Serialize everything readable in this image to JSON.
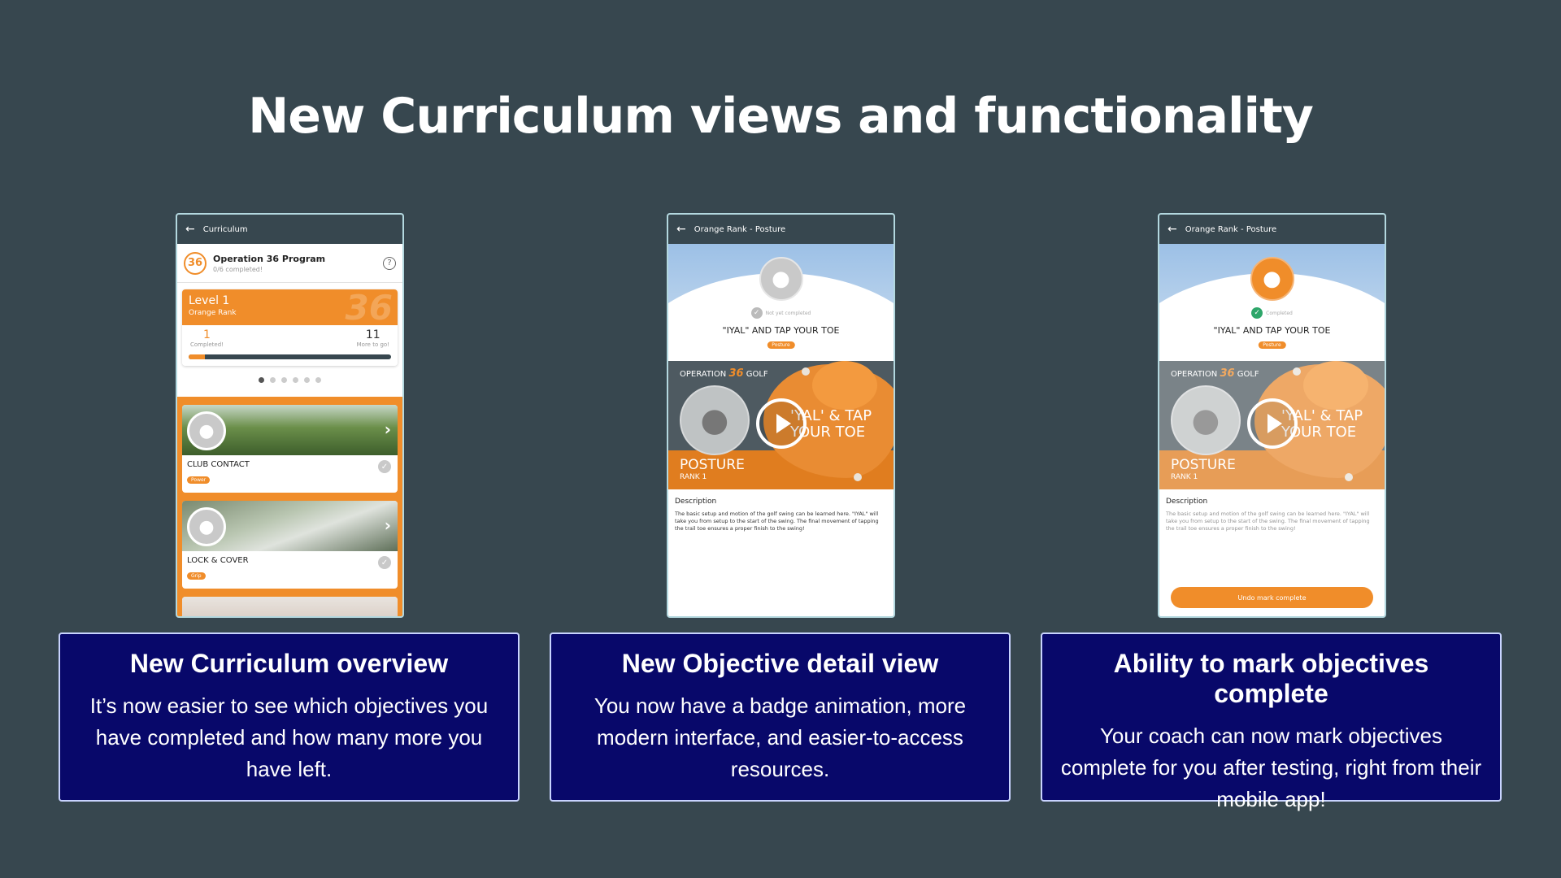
{
  "slide": {
    "title": "New Curriculum views and functionality"
  },
  "phone1": {
    "topbar_title": "Curriculum",
    "program_logo": "36",
    "program_title": "Operation 36 Program",
    "program_sub": "0/6 completed!",
    "help": "?",
    "level_title": "Level 1",
    "level_rank": "Orange Rank",
    "level_bg": "36",
    "completed_num": "1",
    "completed_lbl": "Completed!",
    "togo_num": "11",
    "togo_lbl": "More to go!",
    "progress_fraction": 0.08,
    "objectives": [
      {
        "name": "CLUB CONTACT",
        "tag": "Power"
      },
      {
        "name": "LOCK & COVER",
        "tag": "Grip"
      }
    ]
  },
  "phone2": {
    "topbar_title": "Orange Rank - Posture",
    "status": "Not yet completed",
    "heading": "\"IYAL\" AND TAP YOUR TOE",
    "tag": "Posture",
    "video_brand_a": "OPERATION",
    "video_brand_num": "36",
    "video_brand_b": "GOLF",
    "video_title": "'YAL' & TAP YOUR TOE",
    "video_posture": "POSTURE",
    "video_rank": "RANK 1",
    "desc_title": "Description",
    "desc_body": "The basic setup and motion of the golf swing can be learned here. \"IYAL\" will take you from setup to the start of the swing. The final movement of tapping the trail toe ensures a proper finish to the swing!"
  },
  "phone3": {
    "topbar_title": "Orange Rank - Posture",
    "status": "Completed",
    "heading": "\"IYAL\" AND TAP YOUR TOE",
    "tag": "Posture",
    "video_brand_a": "OPERATION",
    "video_brand_num": "36",
    "video_brand_b": "GOLF",
    "video_title": "'YAL' & TAP YOUR TOE",
    "video_posture": "POSTURE",
    "video_rank": "RANK 1",
    "desc_title": "Description",
    "desc_body": "The basic setup and motion of the golf swing can be learned here. \"IYAL\" will take you from setup to the start of the swing. The final movement of tapping the trail toe ensures a proper finish to the swing!",
    "undo_button": "Undo mark complete"
  },
  "cards": [
    {
      "title": "New Curriculum overview",
      "body": "It’s now easier to see which objectives you have completed and how many more you have left."
    },
    {
      "title": "New Objective detail view",
      "body": "You now have a badge animation, more modern interface, and easier-to-access resources."
    },
    {
      "title": "Ability to mark objectives complete",
      "body": "Your coach can now mark objectives complete for you after testing, right from their mobile app!"
    }
  ],
  "colors": {
    "background": "#37474f",
    "accent": "#f08d2a",
    "card": "#08086a",
    "completed_green": "#2ea66a"
  },
  "icons": {
    "back": "arrow-left-icon",
    "help": "help-circle-icon",
    "play": "play-icon",
    "check": "check-circle-icon",
    "chevron": "chevron-right-icon"
  }
}
